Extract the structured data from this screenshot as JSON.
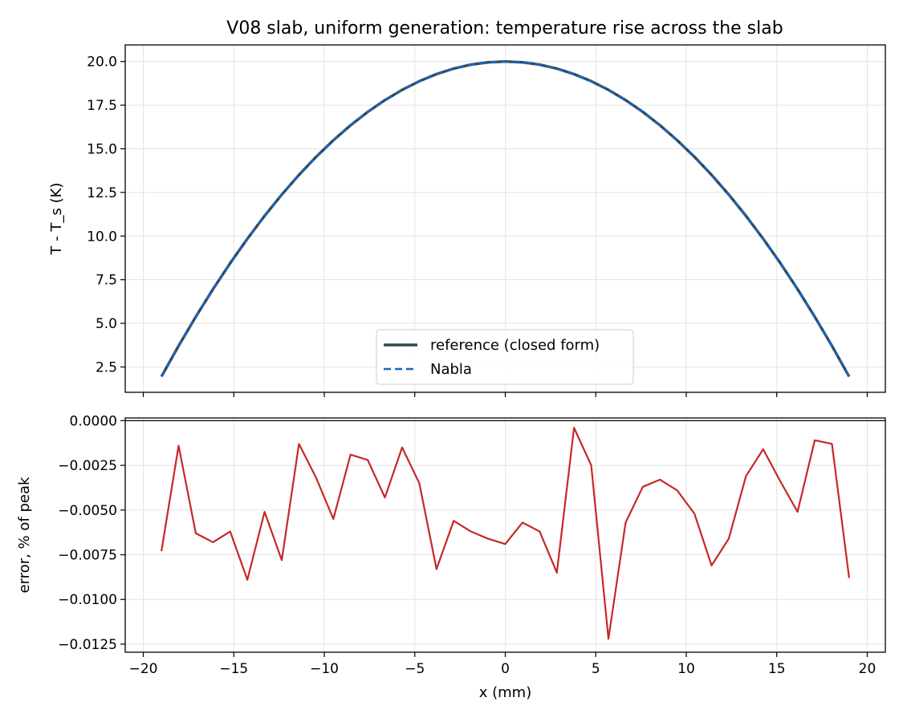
{
  "figure": {
    "title": "V08 slab, uniform generation: temperature rise across the slab"
  },
  "chart_data": [
    {
      "type": "line",
      "title": "V08 slab, uniform generation: temperature rise across the slab",
      "xlabel": "",
      "ylabel": "T - T_s (K)",
      "xlim": [
        -21,
        21
      ],
      "ylim": [
        1.05,
        20.95
      ],
      "xticks": [
        -20,
        -15,
        -10,
        -5,
        0,
        5,
        10,
        15,
        20
      ],
      "xtick_labels_visible": false,
      "yticks": [
        2.5,
        5.0,
        7.5,
        10.0,
        12.5,
        15.0,
        17.5,
        20.0
      ],
      "ytick_labels": [
        "2.5",
        "5.0",
        "7.5",
        "10.0",
        "12.5",
        "15.0",
        "17.5",
        "20.0"
      ],
      "grid": true,
      "legend_position": "lower center",
      "x": [
        -19.0,
        -18.05,
        -17.1,
        -16.15,
        -15.2,
        -14.25,
        -13.3,
        -12.35,
        -11.4,
        -10.45,
        -9.5,
        -8.55,
        -7.6,
        -6.65,
        -5.7,
        -4.75,
        -3.8,
        -2.85,
        -1.9,
        -0.95,
        0.0,
        0.95,
        1.9,
        2.85,
        3.8,
        4.75,
        5.7,
        6.65,
        7.6,
        8.55,
        9.5,
        10.45,
        11.4,
        12.35,
        13.3,
        14.25,
        15.2,
        16.15,
        17.1,
        18.05,
        19.0
      ],
      "series": [
        {
          "name": "reference (closed form)",
          "color": "#37474f",
          "style": "solid",
          "values": [
            1.95,
            3.8,
            5.56,
            7.23,
            8.81,
            10.3,
            11.7,
            13.01,
            14.22,
            15.35,
            16.39,
            17.33,
            18.19,
            18.95,
            19.62,
            20.2,
            20.69,
            21.08,
            21.39,
            21.6,
            20.0,
            21.6,
            21.39,
            21.08,
            20.69,
            20.2,
            19.62,
            18.95,
            18.19,
            17.33,
            16.39,
            15.35,
            14.22,
            13.01,
            11.7,
            10.3,
            8.81,
            7.23,
            5.56,
            3.8,
            1.95
          ]
        },
        {
          "name": "Nabla",
          "color": "#1565c0",
          "style": "dashed",
          "values": [
            1.95,
            3.8,
            5.56,
            7.23,
            8.81,
            10.3,
            11.7,
            13.01,
            14.22,
            15.35,
            16.39,
            17.33,
            18.19,
            18.95,
            19.62,
            20.2,
            20.69,
            21.08,
            21.39,
            21.6,
            20.0,
            21.6,
            21.39,
            21.08,
            20.69,
            20.2,
            19.62,
            18.95,
            18.19,
            17.33,
            16.39,
            15.35,
            14.22,
            13.01,
            11.7,
            10.3,
            8.81,
            7.23,
            5.56,
            3.8,
            1.95
          ]
        }
      ]
    },
    {
      "type": "line",
      "title": "",
      "xlabel": "x (mm)",
      "ylabel": "error, % of peak",
      "xlim": [
        -21,
        21
      ],
      "ylim": [
        -0.01295,
        0.00015
      ],
      "xticks": [
        -20,
        -15,
        -10,
        -5,
        0,
        5,
        10,
        15,
        20
      ],
      "xtick_labels": [
        "−20",
        "−15",
        "−10",
        "−5",
        "0",
        "5",
        "10",
        "15",
        "20"
      ],
      "yticks": [
        0.0,
        -0.0025,
        -0.005,
        -0.0075,
        -0.01,
        -0.0125
      ],
      "ytick_labels": [
        "0.0000",
        "−0.0025",
        "−0.0050",
        "−0.0075",
        "−0.0100",
        "−0.0125"
      ],
      "grid": true,
      "reference_line_y": 0.0,
      "x": [
        -19.0,
        -18.05,
        -17.1,
        -16.15,
        -15.2,
        -14.25,
        -13.3,
        -12.35,
        -11.4,
        -10.45,
        -9.5,
        -8.55,
        -7.6,
        -6.65,
        -5.7,
        -4.75,
        -3.8,
        -2.85,
        -1.9,
        -0.95,
        0.0,
        0.95,
        1.9,
        2.85,
        3.8,
        4.75,
        5.7,
        6.65,
        7.6,
        8.55,
        9.5,
        10.45,
        11.4,
        12.35,
        13.3,
        14.25,
        15.2,
        16.15,
        17.1,
        18.05,
        19.0
      ],
      "series": [
        {
          "color": "#c62828",
          "style": "solid",
          "values": [
            -0.0073,
            -0.0014,
            -0.0063,
            -0.0068,
            -0.0062,
            -0.0089,
            -0.0051,
            -0.0078,
            -0.0013,
            -0.0032,
            -0.0055,
            -0.0019,
            -0.0022,
            -0.0043,
            -0.0015,
            -0.0035,
            -0.0083,
            -0.0056,
            -0.0062,
            -0.0066,
            -0.0069,
            -0.0057,
            -0.0062,
            -0.0085,
            -0.0004,
            -0.0025,
            -0.0122,
            -0.0057,
            -0.0037,
            -0.0033,
            -0.0039,
            -0.0052,
            -0.0081,
            -0.0066,
            -0.0031,
            -0.0016,
            -0.0034,
            -0.0051,
            -0.0011,
            -0.0013,
            -0.0088
          ]
        }
      ]
    }
  ]
}
